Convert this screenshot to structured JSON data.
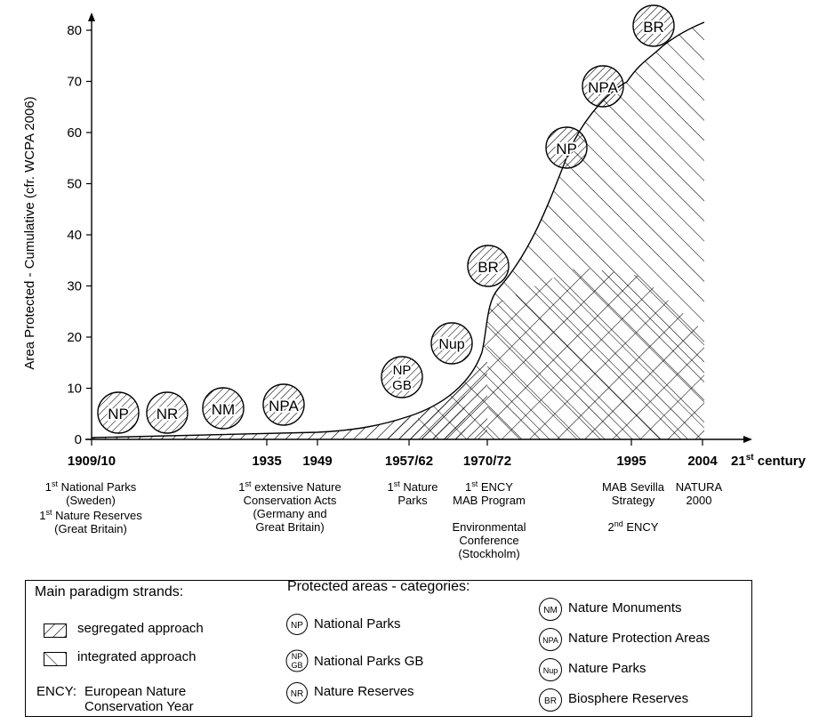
{
  "chart_data": {
    "type": "area",
    "ylabel": "Area Protected - Cumulative (cfr. WCPA 2006)",
    "ylim": [
      0,
      80
    ],
    "yticks": [
      0,
      10,
      20,
      30,
      40,
      50,
      60,
      70,
      80
    ],
    "x_ticks": [
      "1909/10",
      "1935",
      "1949",
      "1957/62",
      "1970/72",
      "1995",
      "2004",
      "21st century"
    ],
    "curve": [
      {
        "x": "1909/10",
        "y": 0.3
      },
      {
        "x": "1935",
        "y": 1.2
      },
      {
        "x": "1949",
        "y": 2.0
      },
      {
        "x": "1957/62",
        "y": 7
      },
      {
        "x": "1970/72",
        "y": 18
      },
      {
        "x": "1973",
        "y": 28
      },
      {
        "x": "1985",
        "y": 45
      },
      {
        "x": "1990",
        "y": 58
      },
      {
        "x": "1995",
        "y": 72
      },
      {
        "x": "2004",
        "y": 81
      }
    ],
    "series": [
      {
        "name": "segregated approach"
      },
      {
        "name": "integrated approach"
      }
    ]
  },
  "milestones": {
    "m1": [
      "1",
      "st",
      " National Parks",
      "(Sweden)",
      "1",
      "st",
      " Nature Reserves",
      "(Great Britain)"
    ],
    "m2": [
      "1",
      "st",
      " extensive Nature",
      "Conservation Acts",
      "(Germany and",
      "Great Britain)"
    ],
    "m3": [
      "1",
      "st",
      " Nature",
      "Parks"
    ],
    "m4": [
      "1",
      "st",
      " ENCY",
      "MAB Program",
      "Environmental",
      "Conference",
      "(Stockholm)"
    ],
    "m5": [
      "MAB Sevilla",
      "Strategy",
      "NATURA",
      "2000",
      "2",
      "nd",
      " ENCY"
    ],
    "century": [
      "21",
      "st",
      " century"
    ]
  },
  "badges": [
    "NP",
    "NR",
    "NM",
    "NPA",
    "NP",
    "GB",
    "Nup",
    "BR",
    "NP",
    "NPA",
    "BR"
  ],
  "legend": {
    "paradigm_title": "Main paradigm strands:",
    "segregated": "segregated approach",
    "integrated": "integrated approach",
    "ency_abbr": "ENCY:",
    "ency_full_1": "European Nature",
    "ency_full_2": "Conservation Year",
    "categories_title": "Protected areas - categories:",
    "cat_np": {
      "abbr": "NP",
      "label": "National Parks"
    },
    "cat_npgb": {
      "abbr1": "NP",
      "abbr2": "GB",
      "label": "National Parks GB"
    },
    "cat_nr": {
      "abbr": "NR",
      "label": "Nature Reserves"
    },
    "cat_nm": {
      "abbr": "NM",
      "label": "Nature Monuments"
    },
    "cat_npa": {
      "abbr": "NPA",
      "label": "Nature Protection Areas"
    },
    "cat_nup": {
      "abbr": "Nup",
      "label": "Nature Parks"
    },
    "cat_br": {
      "abbr": "BR",
      "label": "Biosphere Reserves"
    }
  }
}
